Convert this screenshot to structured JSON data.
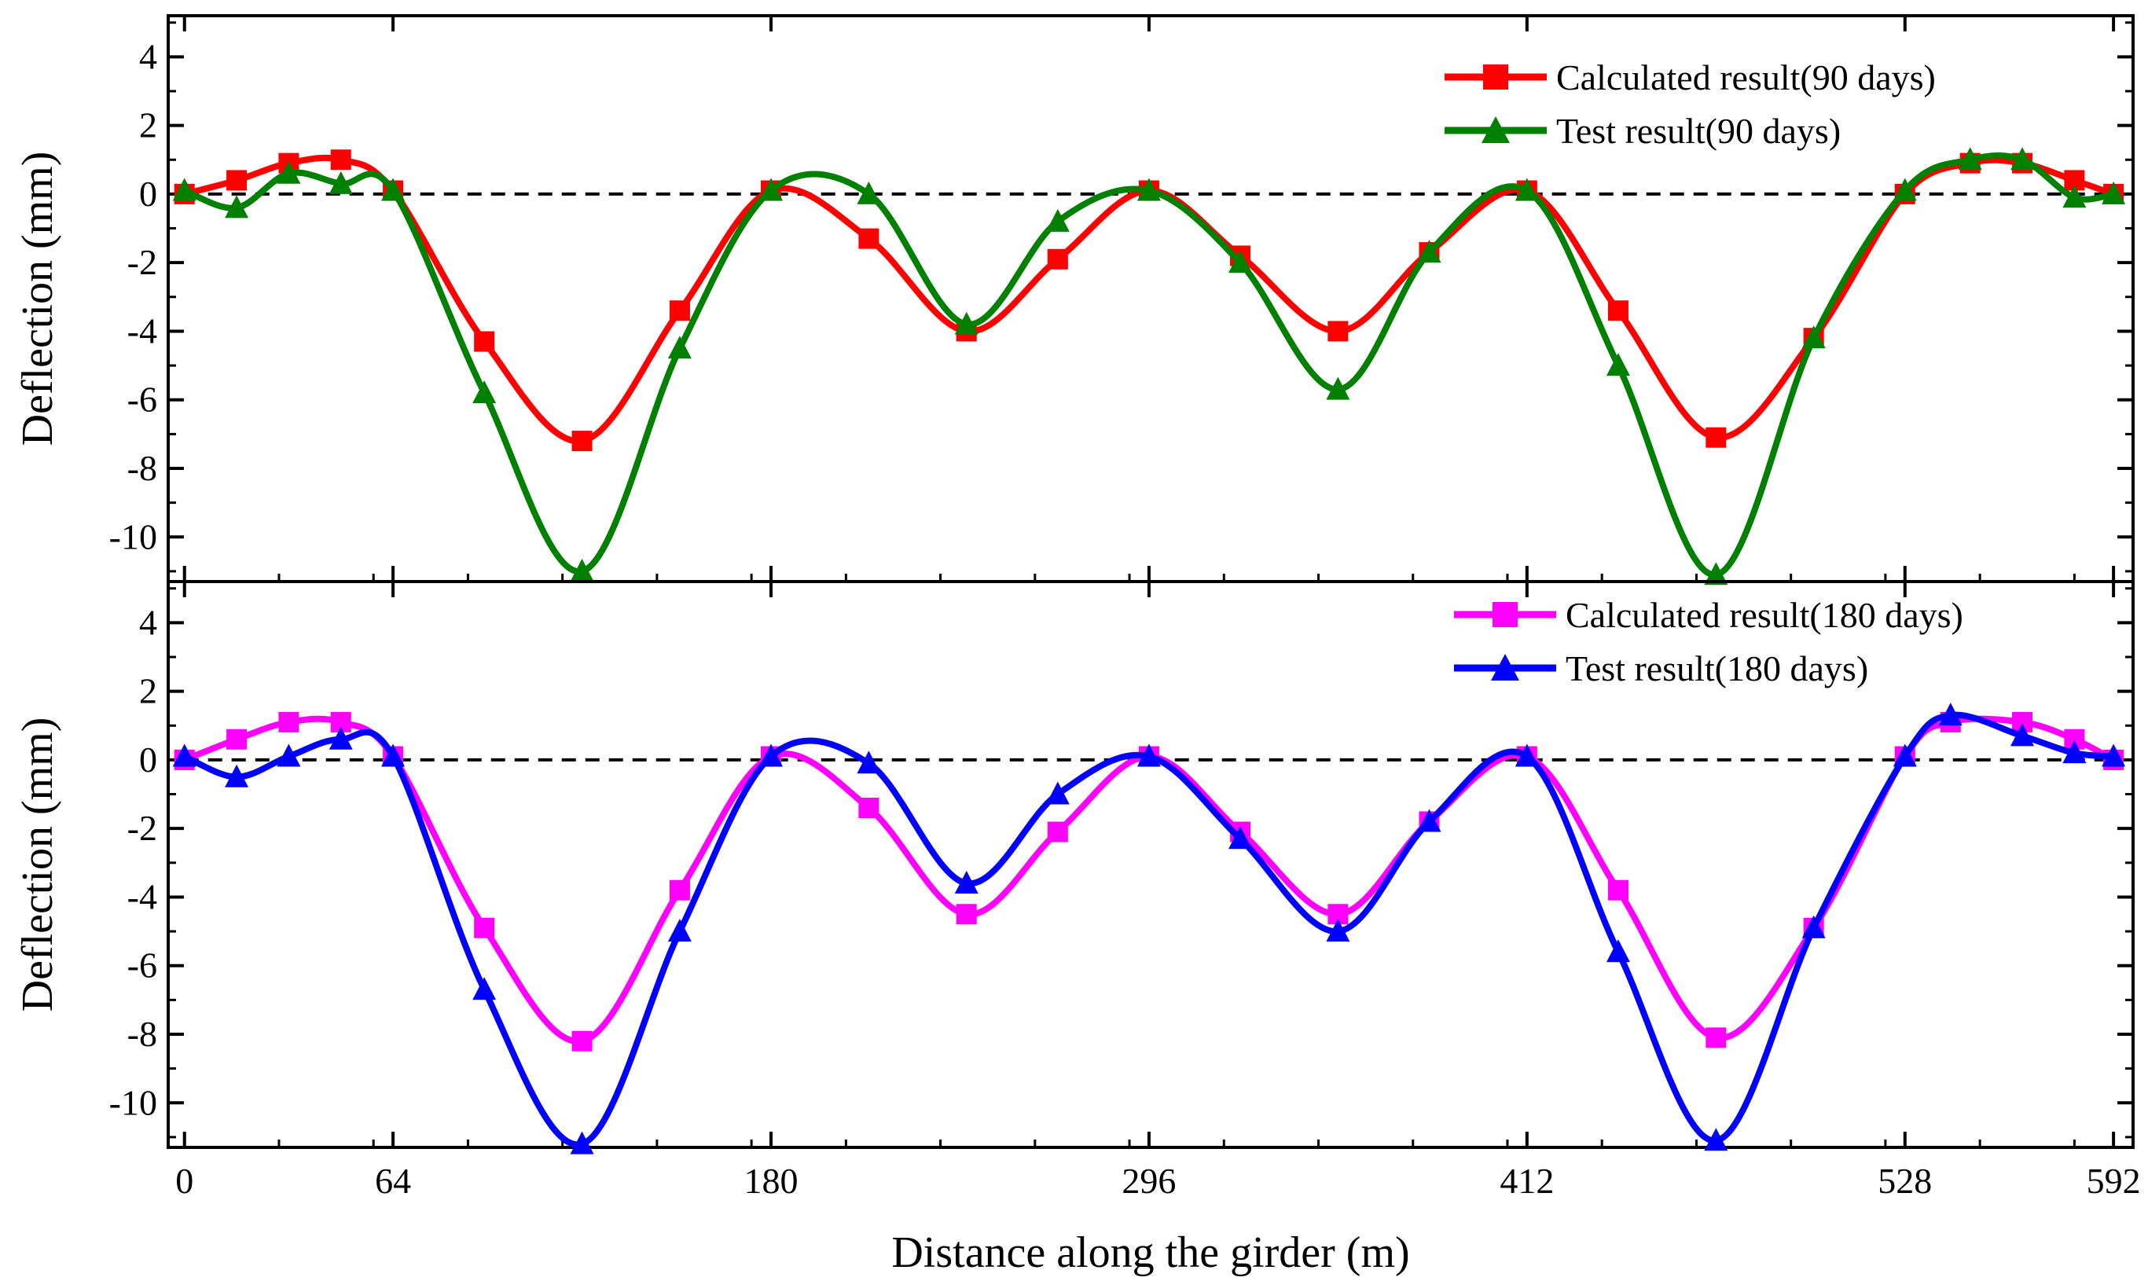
{
  "colors": {
    "calc_90": "#ff0000",
    "test_90": "#008000",
    "calc_180": "#ff00ff",
    "test_180": "#0000ff",
    "axis": "#000000",
    "zero_line": "#000000"
  },
  "chart_data": [
    {
      "type": "line",
      "panel": "top",
      "ylabel": "Deflection (mm)",
      "xlim": [
        -5,
        598
      ],
      "ylim": [
        -11.3,
        5.2
      ],
      "yticks": [
        4,
        2,
        0,
        -2,
        -4,
        -6,
        -8,
        -10
      ],
      "ytick_labels": [
        "4",
        "2",
        "0",
        "-2",
        "-4",
        "-6",
        "-8",
        "-10"
      ],
      "zero_line": true,
      "legend_position": "top-right",
      "series": [
        {
          "name": "Calculated result(90 days)",
          "marker": "square",
          "x": [
            0,
            16,
            32,
            48,
            64,
            92,
            122,
            152,
            180,
            210,
            240,
            268,
            296,
            324,
            354,
            382,
            412,
            440,
            470,
            500,
            528,
            548,
            564,
            580,
            592
          ],
          "y": [
            0,
            0.4,
            0.9,
            1.0,
            0.1,
            -4.3,
            -7.2,
            -3.4,
            0.1,
            -1.3,
            -4.0,
            -1.9,
            0.1,
            -1.8,
            -4.0,
            -1.7,
            0.1,
            -3.4,
            -7.1,
            -4.2,
            0.0,
            0.9,
            0.9,
            0.4,
            0.0
          ]
        },
        {
          "name": "Test result(90 days)",
          "marker": "triangle",
          "x": [
            0,
            16,
            32,
            48,
            64,
            92,
            122,
            152,
            180,
            210,
            240,
            268,
            296,
            324,
            354,
            382,
            412,
            440,
            470,
            500,
            528,
            548,
            564,
            580,
            592
          ],
          "y": [
            0.1,
            -0.4,
            0.6,
            0.3,
            0.1,
            -5.8,
            -11.0,
            -4.5,
            0.1,
            0.0,
            -3.8,
            -0.8,
            0.1,
            -2.0,
            -5.7,
            -1.7,
            0.1,
            -5.0,
            -11.1,
            -4.2,
            0.1,
            1.0,
            1.0,
            -0.1,
            0.0
          ]
        }
      ]
    },
    {
      "type": "line",
      "panel": "bottom",
      "xlabel": "Distance along the girder (m)",
      "ylabel": "Deflection (mm)",
      "xlim": [
        -5,
        598
      ],
      "ylim": [
        -11.3,
        5.2
      ],
      "xticks": [
        0,
        64,
        180,
        296,
        412,
        528,
        592
      ],
      "xtick_labels": [
        "0",
        "64",
        "180",
        "296",
        "412",
        "528",
        "592"
      ],
      "yticks": [
        4,
        2,
        0,
        -2,
        -4,
        -6,
        -8,
        -10
      ],
      "ytick_labels": [
        "4",
        "2",
        "0",
        "-2",
        "-4",
        "-6",
        "-8",
        "-10"
      ],
      "zero_line": true,
      "legend_position": "top-right",
      "series": [
        {
          "name": "Calculated result(180 days)",
          "marker": "square",
          "x": [
            0,
            16,
            32,
            48,
            64,
            92,
            122,
            152,
            180,
            210,
            240,
            268,
            296,
            324,
            354,
            382,
            412,
            440,
            470,
            500,
            528,
            542,
            564,
            580,
            592
          ],
          "y": [
            0,
            0.6,
            1.1,
            1.1,
            0.1,
            -4.9,
            -8.2,
            -3.8,
            0.1,
            -1.4,
            -4.5,
            -2.1,
            0.1,
            -2.1,
            -4.5,
            -1.8,
            0.1,
            -3.8,
            -8.1,
            -4.9,
            0.1,
            1.1,
            1.1,
            0.6,
            0.0
          ]
        },
        {
          "name": "Test result(180 days)",
          "marker": "triangle",
          "x": [
            0,
            16,
            32,
            48,
            64,
            92,
            122,
            152,
            180,
            210,
            240,
            268,
            296,
            324,
            354,
            382,
            412,
            440,
            470,
            500,
            528,
            542,
            564,
            580,
            592
          ],
          "y": [
            0.1,
            -0.5,
            0.1,
            0.6,
            0.1,
            -6.7,
            -11.2,
            -5.0,
            0.1,
            -0.1,
            -3.6,
            -1.0,
            0.1,
            -2.3,
            -5.0,
            -1.8,
            0.1,
            -5.6,
            -11.1,
            -4.9,
            0.1,
            1.3,
            0.7,
            0.2,
            0.1
          ]
        }
      ]
    }
  ]
}
